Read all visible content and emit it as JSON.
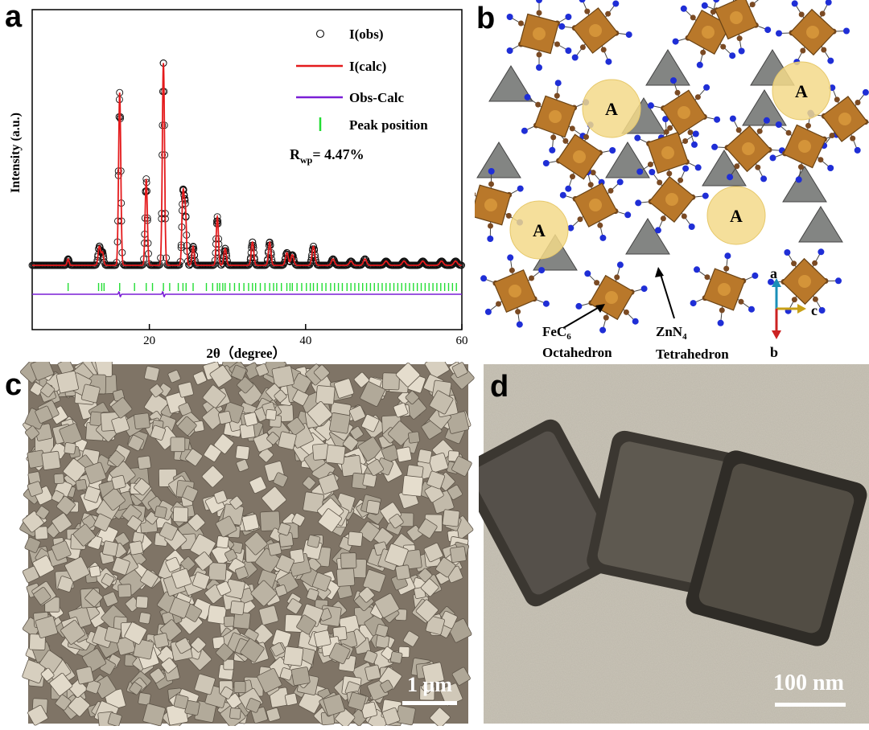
{
  "panels": {
    "a": "a",
    "b": "b",
    "c": "c",
    "d": "d"
  },
  "panel_a": {
    "ylabel": "Intensity (a.u.)",
    "xlabel": "2θ（degree）",
    "legend": {
      "obs": "I(obs)",
      "calc": "I(calc)",
      "diff": "Obs-Calc",
      "peak": "Peak position"
    },
    "rwp_label": "R",
    "rwp_sub": "wp",
    "rwp_value": "= 4.47%"
  },
  "chart_data": {
    "type": "line",
    "xlabel": "2θ（degree）",
    "ylabel": "Intensity (a.u.)",
    "xlim": [
      5,
      60
    ],
    "x_ticks": [
      20,
      40,
      60
    ],
    "y_ticks": [],
    "legend_position": "top-right",
    "grid": false,
    "colors": {
      "obs": "#111111",
      "calc": "#e41a1c",
      "diff": "#7a1fd6",
      "peak": "#22dd33"
    },
    "peaks": [
      {
        "x": 9.6,
        "h": 0.03,
        "w": 0.12
      },
      {
        "x": 13.6,
        "h": 0.09,
        "w": 0.16
      },
      {
        "x": 14.0,
        "h": 0.06,
        "w": 0.14
      },
      {
        "x": 16.2,
        "h": 0.82,
        "w": 0.14
      },
      {
        "x": 19.6,
        "h": 0.41,
        "w": 0.14
      },
      {
        "x": 21.8,
        "h": 0.96,
        "w": 0.14
      },
      {
        "x": 24.3,
        "h": 0.33,
        "w": 0.14
      },
      {
        "x": 24.6,
        "h": 0.26,
        "w": 0.14
      },
      {
        "x": 25.6,
        "h": 0.09,
        "w": 0.14
      },
      {
        "x": 28.7,
        "h": 0.23,
        "w": 0.14
      },
      {
        "x": 29.7,
        "h": 0.08,
        "w": 0.16
      },
      {
        "x": 33.2,
        "h": 0.11,
        "w": 0.16
      },
      {
        "x": 35.4,
        "h": 0.11,
        "w": 0.16
      },
      {
        "x": 37.6,
        "h": 0.06,
        "w": 0.18
      },
      {
        "x": 38.3,
        "h": 0.05,
        "w": 0.18
      },
      {
        "x": 41.0,
        "h": 0.09,
        "w": 0.18
      },
      {
        "x": 43.5,
        "h": 0.03,
        "w": 0.2
      },
      {
        "x": 45.8,
        "h": 0.02,
        "w": 0.2
      },
      {
        "x": 47.6,
        "h": 0.03,
        "w": 0.2
      },
      {
        "x": 50.3,
        "h": 0.02,
        "w": 0.22
      },
      {
        "x": 52.6,
        "h": 0.02,
        "w": 0.22
      },
      {
        "x": 55.0,
        "h": 0.02,
        "w": 0.22
      },
      {
        "x": 57.4,
        "h": 0.02,
        "w": 0.22
      },
      {
        "x": 59.2,
        "h": 0.02,
        "w": 0.22
      }
    ],
    "peak_positions": [
      9.6,
      13.5,
      13.9,
      14.2,
      16.2,
      18.1,
      19.6,
      20.4,
      21.8,
      22.6,
      23.7,
      24.3,
      24.7,
      25.6,
      27.3,
      28.1,
      28.7,
      29.0,
      29.4,
      29.7,
      30.3,
      30.9,
      31.5,
      32.1,
      32.7,
      33.2,
      33.6,
      34.2,
      34.8,
      35.4,
      35.9,
      36.3,
      36.9,
      37.6,
      38.0,
      38.3,
      38.9,
      39.5,
      40.1,
      40.6,
      41.0,
      41.5,
      42.1,
      42.6,
      43.2,
      43.7,
      44.2,
      44.7,
      45.3,
      45.8,
      46.3,
      46.8,
      47.3,
      47.8,
      48.3,
      48.8,
      49.3,
      49.8,
      50.3,
      50.8,
      51.3,
      51.8,
      52.3,
      52.8,
      53.3,
      53.8,
      54.3,
      54.8,
      55.3,
      55.8,
      56.3,
      56.8,
      57.3,
      57.8,
      58.3,
      58.8,
      59.3
    ],
    "diff_dips": [
      16.2,
      21.8
    ]
  },
  "panel_b": {
    "sites": [
      "A",
      "A",
      "A",
      "A"
    ],
    "label_fe": "FeC",
    "label_fe_sub": "6",
    "label_oct": "Octahedron",
    "label_zn": "ZnN",
    "label_zn_sub": "4",
    "label_tet": "Tetrahedron",
    "axis_a": "a",
    "axis_b": "b",
    "axis_c": "c",
    "colors": {
      "octahedron": "#b9782a",
      "tetrahedron": "#6d706d",
      "carbon": "#7a4a23",
      "nitrogen": "#1f2ed6",
      "site": "#f3d98a"
    }
  },
  "panel_c": {
    "scale_label": "1 μm",
    "colors": {
      "background": "#7f7466",
      "cube": "#cfc6b5"
    }
  },
  "panel_d": {
    "scale_label": "100 nm",
    "colors": {
      "background": "#c9c4b7",
      "cube_shell": "#3b3731",
      "cube_core": "#5a554c"
    }
  }
}
